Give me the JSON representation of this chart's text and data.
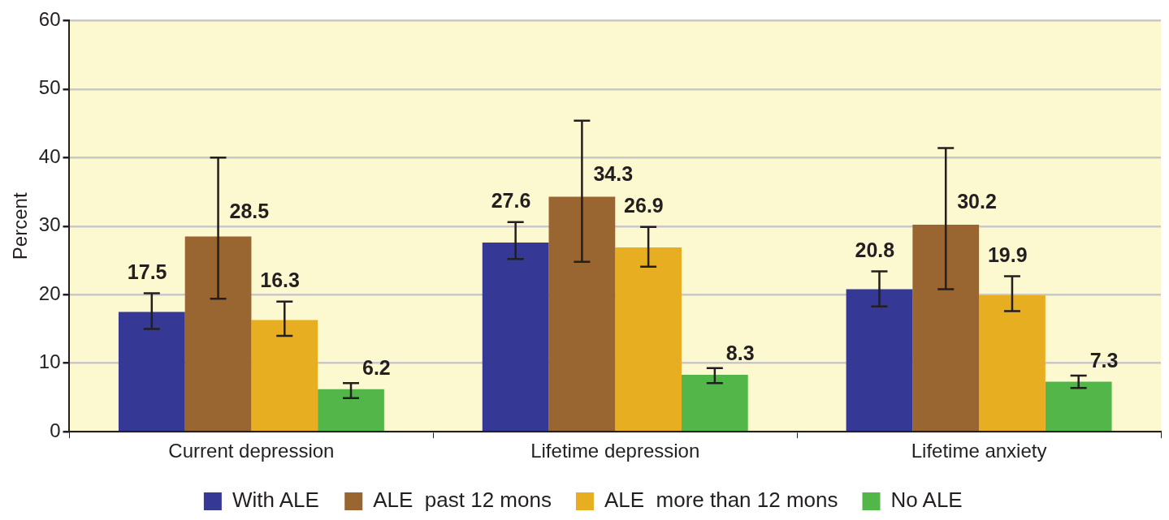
{
  "chart_data": {
    "type": "bar",
    "ylabel": "Percent",
    "categories": [
      "Current depression",
      "Lifetime depression",
      "Lifetime anxiety"
    ],
    "series": [
      {
        "name": "With ALE",
        "color": "#353895",
        "values": [
          17.5,
          27.6,
          20.8
        ],
        "errors": [
          [
            15.0,
            20.2
          ],
          [
            25.2,
            30.6
          ],
          [
            18.3,
            23.4
          ]
        ]
      },
      {
        "name": "ALE  past 12 mons",
        "color": "#996530",
        "values": [
          28.5,
          34.3,
          30.2
        ],
        "errors": [
          [
            19.4,
            40.0
          ],
          [
            24.8,
            45.4
          ],
          [
            20.8,
            41.4
          ]
        ]
      },
      {
        "name": "ALE  more than 12 mons",
        "color": "#e8ae22",
        "values": [
          16.3,
          26.9,
          19.9
        ],
        "errors": [
          [
            14.0,
            19.0
          ],
          [
            24.1,
            29.9
          ],
          [
            17.6,
            22.7
          ]
        ]
      },
      {
        "name": "No ALE",
        "color": "#52b748",
        "values": [
          6.2,
          8.3,
          7.3
        ],
        "errors": [
          [
            4.9,
            7.1
          ],
          [
            7.1,
            9.3
          ],
          [
            6.4,
            8.2
          ]
        ]
      }
    ],
    "ylim": [
      0,
      60
    ],
    "yticks": [
      0,
      10,
      20,
      30,
      40,
      50,
      60
    ],
    "grid": "y",
    "legend": "bottom",
    "data_labels": true
  }
}
